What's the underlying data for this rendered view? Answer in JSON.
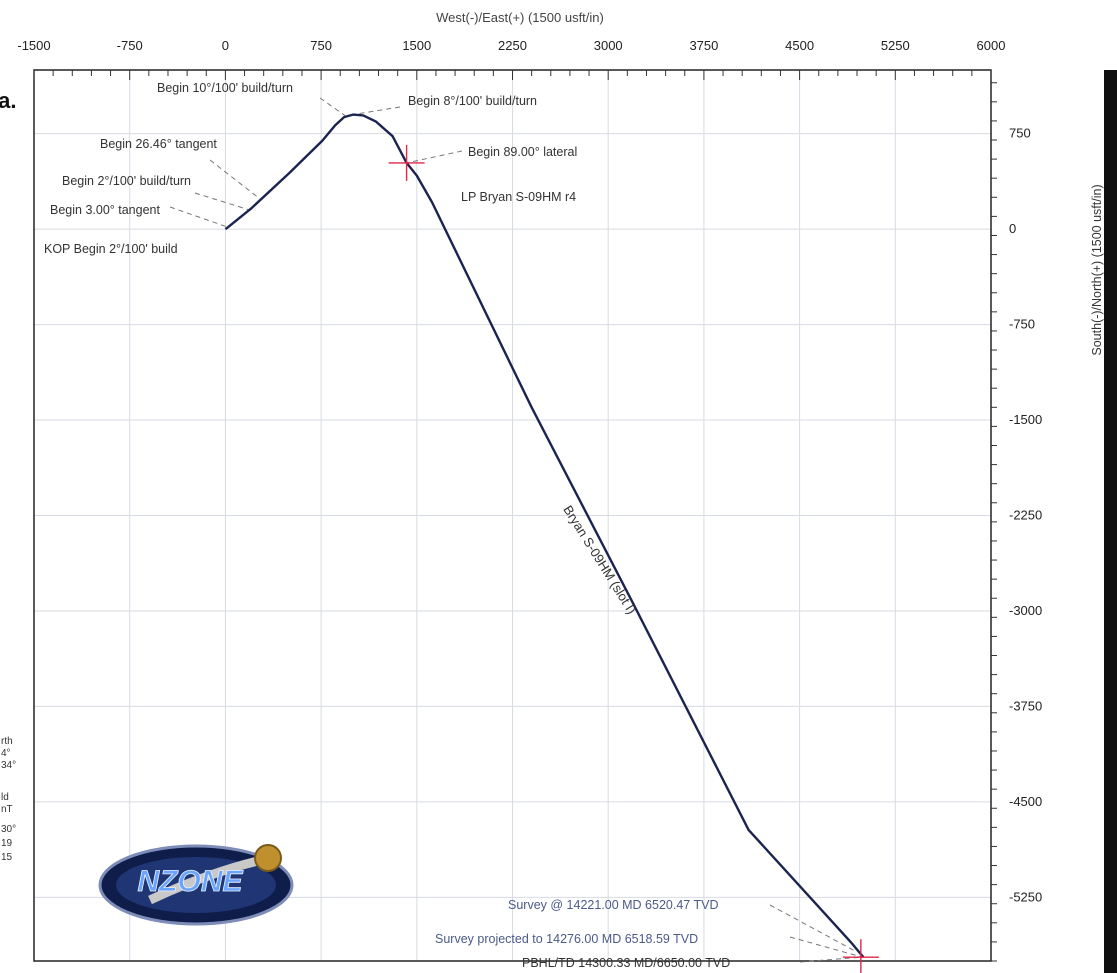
{
  "page_fragments": {
    "corner_text": "ia.",
    "left_edge_lines": [
      "rth",
      "4°",
      "34°",
      "",
      "ld",
      "nT",
      "30°",
      "19",
      "15"
    ]
  },
  "logo": {
    "text": "NZONE"
  },
  "chart_data": {
    "type": "line",
    "xlabel": "West(-)/East(+) (1500 usft/in)",
    "ylabel": "South(-)/North(+) (1500 usft/in)",
    "xlim": [
      -1500,
      6000
    ],
    "ylim": [
      -5750,
      1250
    ],
    "x_ticks": [
      -1500,
      -750,
      0,
      750,
      1500,
      2250,
      3000,
      3750,
      4500,
      5250,
      6000
    ],
    "x_tick_labels": [
      "-1500",
      "-750",
      "0",
      "750",
      "1500",
      "2250",
      "3000",
      "3750",
      "4500",
      "5250",
      "6000"
    ],
    "y_ticks": [
      750,
      0,
      -750,
      -1500,
      -2250,
      -3000,
      -3750,
      -4500,
      -5250
    ],
    "y_tick_labels": [
      "750",
      "0",
      "-750",
      "-1500",
      "-2250",
      "-3000",
      "-3750",
      "-4500",
      "-5250"
    ],
    "grid": true,
    "colors": {
      "path": "#1b2450",
      "target": "#e0284a",
      "grid": "#d7dbe3",
      "annotation_text": "#333333",
      "survey_text": "#4a5a8a"
    },
    "series": [
      {
        "name": "Bryan S-09HM (slot I)",
        "x": [
          0,
          20,
          200,
          500,
          760,
          860,
          930,
          1000,
          1080,
          1180,
          1310,
          1420,
          1500,
          1620,
          2400,
          3200,
          4100,
          4900,
          5000
        ],
        "y": [
          0,
          15,
          160,
          440,
          695,
          815,
          880,
          900,
          893,
          845,
          730,
          520,
          420,
          210,
          -1400,
          -2950,
          -4720,
          -5600,
          -5720
        ]
      }
    ],
    "targets": [
      {
        "label": "LP Bryan S-09HM r4",
        "x": 1420,
        "y": 520
      },
      {
        "label": "",
        "x": 4980,
        "y": -5720
      }
    ],
    "annotations": [
      {
        "text": "KOP Begin 2°/100' build",
        "x": 0,
        "y": 0
      },
      {
        "text": "Begin 3.00° tangent",
        "x": 20,
        "y": 15
      },
      {
        "text": "Begin 2°/100' build/turn",
        "x": 190,
        "y": 150
      },
      {
        "text": "Begin 26.46° tangent",
        "x": 280,
        "y": 230
      },
      {
        "text": "Begin 10°/100' build/turn",
        "x": 940,
        "y": 890
      },
      {
        "text": "Begin 8°/100' build/turn",
        "x": 1000,
        "y": 900
      },
      {
        "text": "Begin 89.00° lateral",
        "x": 1420,
        "y": 520
      },
      {
        "text": "LP Bryan S-09HM r4",
        "x": 1420,
        "y": 520
      },
      {
        "text": "Survey @ 14221.00 MD 6520.47 TVD",
        "x": 4950,
        "y": -5680
      },
      {
        "text": "Survey projected to 14276.00 MD 6518.59 TVD",
        "x": 4975,
        "y": -5715
      },
      {
        "text": "PBHL/TD 14300.33 MD/6650.00 TVD",
        "x": 4980,
        "y": -5720
      }
    ],
    "series_label": "Bryan S-09HM (slot I)"
  }
}
